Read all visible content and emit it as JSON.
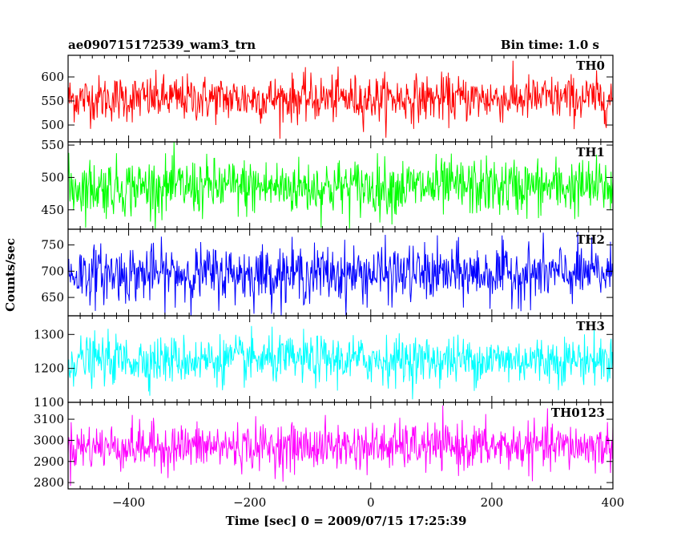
{
  "chart_data": {
    "type": "line",
    "title": "ae090715172539_wam3_trn",
    "bin_time_label": "Bin time: 1.0 s",
    "xlabel": "Time [sec] 0 = 2009/07/15 17:25:39",
    "ylabel": "Counts/sec",
    "xlim": [
      -500,
      400
    ],
    "xticks": [
      -400,
      -200,
      0,
      200,
      400
    ],
    "x_tick_labels": [
      "−400",
      "−200",
      "0",
      "200",
      "400"
    ],
    "x_range": [
      -500,
      400
    ],
    "grid": false,
    "series": [
      {
        "name": "TH0",
        "color": "#ff0000",
        "ylim": [
          465,
          645
        ],
        "yticks": [
          500,
          550,
          600
        ],
        "y_tick_labels": [
          "500",
          "550",
          "600"
        ],
        "mean": 555,
        "sigma": 24,
        "min": 470,
        "max": 645
      },
      {
        "name": "TH1",
        "color": "#00ff00",
        "ylim": [
          420,
          555
        ],
        "yticks": [
          450,
          500,
          550
        ],
        "y_tick_labels": [
          "450",
          "500",
          "550"
        ],
        "mean": 485,
        "sigma": 22,
        "min": 420,
        "max": 555
      },
      {
        "name": "TH2",
        "color": "#0000ff",
        "ylim": [
          615,
          780
        ],
        "yticks": [
          650,
          700,
          750
        ],
        "y_tick_labels": [
          "650",
          "700",
          "750"
        ],
        "mean": 695,
        "sigma": 27,
        "min": 615,
        "max": 780
      },
      {
        "name": "TH3",
        "color": "#00ffff",
        "ylim": [
          1100,
          1355
        ],
        "yticks": [
          1100,
          1200,
          1300
        ],
        "y_tick_labels": [
          "1100",
          "1200",
          "1300"
        ],
        "mean": 1225,
        "sigma": 35,
        "min": 1100,
        "max": 1355
      },
      {
        "name": "TH0123",
        "color": "#ff00ff",
        "ylim": [
          2770,
          3180
        ],
        "yticks": [
          2800,
          2900,
          3000,
          3100
        ],
        "y_tick_labels": [
          "2800",
          "2900",
          "3000",
          "3100"
        ],
        "mean": 2970,
        "sigma": 55,
        "min": 2770,
        "max": 3180
      }
    ]
  }
}
